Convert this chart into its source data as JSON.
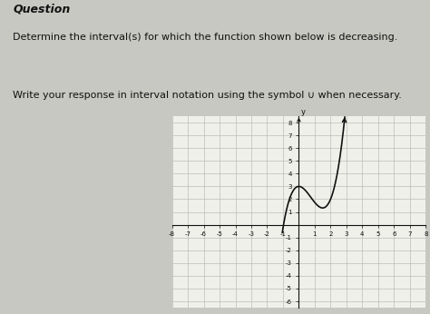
{
  "title_line1": "Question",
  "title_line2": "Determine the interval(s) for which the function shown below is decreasing.",
  "title_line3": "Write your response in interval notation using the symbol ∪ when necessary.",
  "xmin": -8,
  "xmax": 8,
  "ymin": -6.5,
  "ymax": 8.5,
  "xticks": [
    -8,
    -7,
    -6,
    -5,
    -4,
    -3,
    -2,
    -1,
    1,
    2,
    3,
    4,
    5,
    6,
    7,
    8
  ],
  "yticks": [
    -6,
    -5,
    -4,
    -3,
    -2,
    -1,
    1,
    2,
    3,
    4,
    5,
    6,
    7,
    8
  ],
  "curve_color": "#111111",
  "grid_color": "#bbbbbb",
  "bg_color": "#f0f0ea",
  "text_bg_color": "#dcdcd6",
  "text_color": "#111111",
  "axis_color": "#111111",
  "fig_bg": "#c8c8c2"
}
